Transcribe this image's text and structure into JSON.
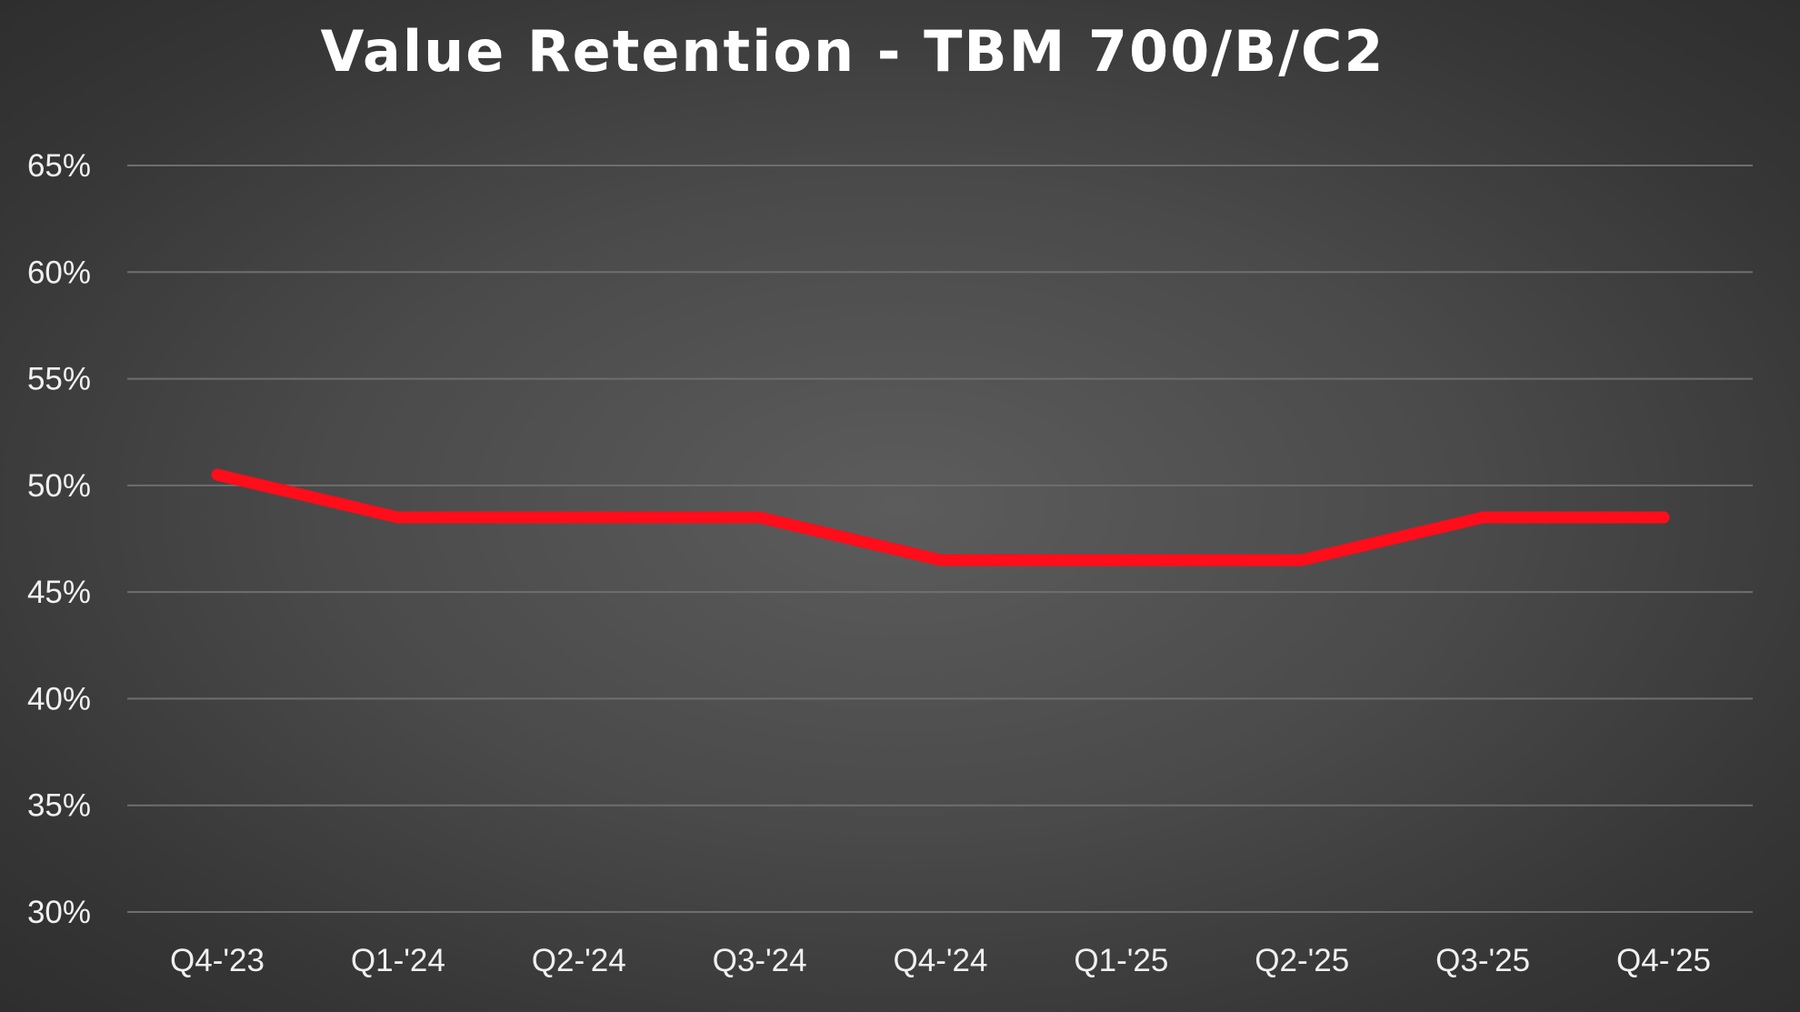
{
  "chart_data": {
    "type": "line",
    "title": "Value Retention - TBM 700/B/C2",
    "xlabel": "",
    "ylabel": "",
    "categories": [
      "Q4-'23",
      "Q1-'24",
      "Q2-'24",
      "Q3-'24",
      "Q4-'24",
      "Q1-'25",
      "Q2-'25",
      "Q3-'25",
      "Q4-'25"
    ],
    "series": [
      {
        "values": [
          50.5,
          48.5,
          48.5,
          48.5,
          46.5,
          46.5,
          46.5,
          48.5,
          48.5
        ],
        "color": "#ff0d1a"
      }
    ],
    "ylim": [
      30,
      65
    ],
    "yticks": [
      30,
      35,
      40,
      45,
      50,
      55,
      60,
      65
    ],
    "ytick_labels": [
      "30%",
      "35%",
      "40%",
      "45%",
      "50%",
      "55%",
      "60%",
      "65%"
    ],
    "grid": true,
    "legend": "none"
  }
}
